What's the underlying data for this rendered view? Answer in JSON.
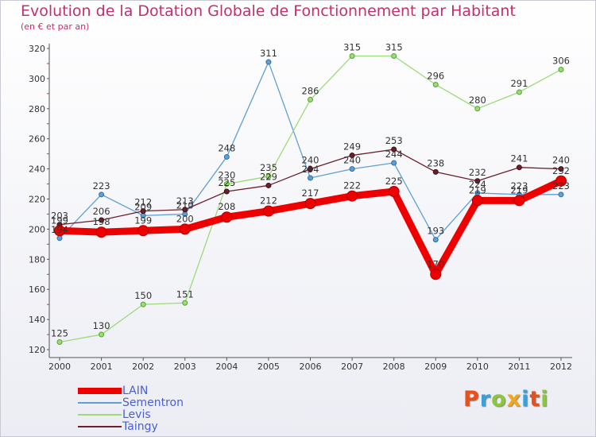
{
  "header": {
    "title": "Evolution de la Dotation Globale de Fonctionnement par Habitant",
    "subtitle": "(en € et par an)"
  },
  "brand": {
    "text": "Proxiti",
    "colors": [
      "#e8501a",
      "#3aa0d8",
      "#8cc63f",
      "#f2a71b",
      "#3aa0d8",
      "#e8501a",
      "#8cc63f"
    ]
  },
  "colors": {
    "LAIN": "#ee0000",
    "Sementron": "#5f9fd2",
    "Levis": "#9ed97a",
    "Taingy": "#6b1f2a",
    "title": "#c2306c",
    "legend_text": "#4a5fd0"
  },
  "chart_data": {
    "type": "line",
    "title": "Evolution de la Dotation Globale de Fonctionnement par Habitant",
    "subtitle": "(en € et par an)",
    "x": [
      "2000",
      "2001",
      "2002",
      "2003",
      "2004",
      "2005",
      "2006",
      "2007",
      "2008",
      "2009",
      "2010",
      "2011",
      "2012"
    ],
    "ylim": [
      120,
      320
    ],
    "yticks": [
      120,
      140,
      160,
      180,
      200,
      220,
      240,
      260,
      280,
      300,
      320
    ],
    "grid": false,
    "legend": "bottom-left",
    "series": [
      {
        "name": "LAIN",
        "values": [
          199,
          198,
          199,
          200,
          208,
          212,
          217,
          222,
          225,
          170,
          219,
          219,
          232
        ]
      },
      {
        "name": "Sementron",
        "values": [
          194,
          223,
          209,
          210,
          248,
          311,
          234,
          240,
          244,
          193,
          224,
          223,
          223
        ]
      },
      {
        "name": "Levis",
        "values": [
          125,
          130,
          150,
          151,
          230,
          235,
          286,
          315,
          315,
          296,
          280,
          291,
          306
        ]
      },
      {
        "name": "Taingy",
        "values": [
          203,
          206,
          212,
          213,
          225,
          229,
          240,
          249,
          253,
          238,
          232,
          241,
          240
        ]
      }
    ]
  }
}
